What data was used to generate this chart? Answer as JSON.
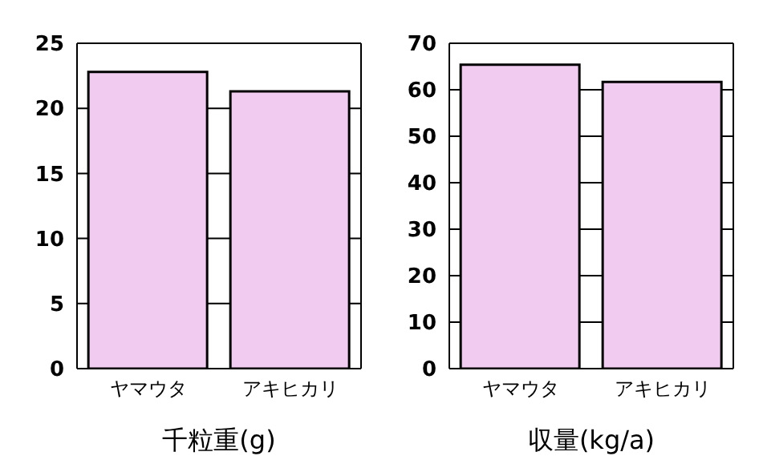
{
  "chart_data": [
    {
      "type": "bar",
      "xlabel": "千粒重(g)",
      "categories": [
        "ヤマウタ",
        "アキヒカリ"
      ],
      "values": [
        22.8,
        21.3
      ],
      "color": "#f2ccf0",
      "ylim": [
        0,
        25
      ],
      "yticks": [
        0,
        5,
        10,
        15,
        20,
        25
      ],
      "grid": "y",
      "legend": false
    },
    {
      "type": "bar",
      "xlabel": "収量(kg/a)",
      "categories": [
        "ヤマウタ",
        "アキヒカリ"
      ],
      "values": [
        65.4,
        61.7
      ],
      "color": "#f2ccf0",
      "ylim": [
        0,
        70
      ],
      "yticks": [
        0,
        10,
        20,
        30,
        40,
        50,
        60,
        70
      ],
      "grid": "y",
      "legend": false
    }
  ]
}
